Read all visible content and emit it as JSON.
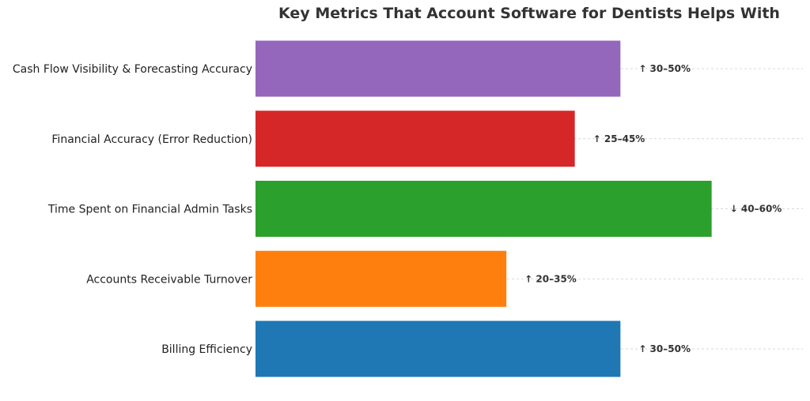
{
  "chart_data": {
    "type": "bar",
    "orientation": "horizontal",
    "title": "Key Metrics That Account Software for Dentists Helps With",
    "xlabel": "",
    "ylabel": "",
    "categories": [
      "Cash Flow Visibility & Forecasting Accuracy",
      "Financial Accuracy (Error Reduction)",
      "Time Spent on Financial Admin Tasks",
      "Accounts Receivable Turnover",
      "Billing Efficiency"
    ],
    "values": [
      40,
      35,
      50,
      27.5,
      40
    ],
    "labels": [
      "↑ 30–50%",
      "↑ 25–45%",
      "↓ 40–60%",
      "↑ 20–35%",
      "↑ 30–50%"
    ],
    "colors": [
      "#9467bd",
      "#d62728",
      "#2ca02c",
      "#ff7f0e",
      "#1f77b4"
    ],
    "xlim": [
      0,
      60
    ],
    "grid": true,
    "axes_visible": false
  }
}
